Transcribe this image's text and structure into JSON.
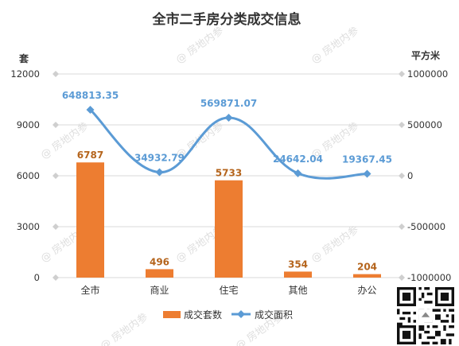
{
  "colors": {
    "bar": "#ed7d31",
    "line": "#5b9bd5",
    "grid": "#d9d9d9",
    "text": "#333333",
    "bar_label": "#b5651d"
  },
  "chart_data": {
    "type": "bar",
    "title": "全市二手房分类成交信息",
    "categories": [
      "全市",
      "商业",
      "住宅",
      "其他",
      "办公"
    ],
    "series": [
      {
        "name": "成交套数",
        "type": "bar",
        "axis": "left",
        "values": [
          6787,
          496,
          5733,
          354,
          204
        ],
        "labels": [
          "6787",
          "496",
          "5733",
          "354",
          "204"
        ]
      },
      {
        "name": "成交面积",
        "type": "line",
        "axis": "right",
        "smooth": true,
        "values": [
          648813.35,
          34932.79,
          569871.07,
          24642.04,
          19367.45
        ],
        "labels": [
          "648813.35",
          "34932.79",
          "569871.07",
          "24642.04",
          "19367.45"
        ]
      }
    ],
    "y_left": {
      "unit_label": "套",
      "min": 0,
      "max": 12000,
      "ticks": [
        0,
        3000,
        6000,
        9000,
        12000
      ],
      "tick_labels": [
        "0",
        "3000",
        "6000",
        "9000",
        "12000"
      ]
    },
    "y_right": {
      "unit_label": "平方米",
      "min": -1000000,
      "max": 1000000,
      "ticks": [
        -1000000,
        -500000,
        0,
        500000,
        1000000
      ],
      "tick_labels": [
        "-1000000",
        "-500000",
        "0",
        "500000",
        "1000000"
      ]
    },
    "grid": true,
    "legend": "bottom"
  },
  "watermark": "房地内参",
  "qr_icon": "qr-code-icon"
}
